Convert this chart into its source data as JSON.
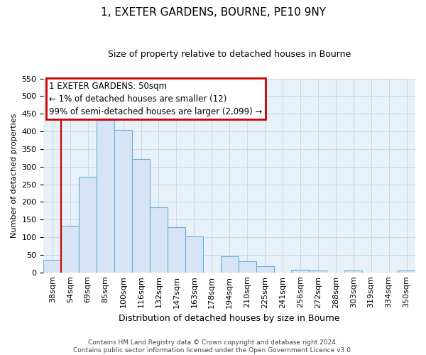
{
  "title": "1, EXETER GARDENS, BOURNE, PE10 9NY",
  "subtitle": "Size of property relative to detached houses in Bourne",
  "xlabel": "Distribution of detached houses by size in Bourne",
  "ylabel": "Number of detached properties",
  "categories": [
    "38sqm",
    "54sqm",
    "69sqm",
    "85sqm",
    "100sqm",
    "116sqm",
    "132sqm",
    "147sqm",
    "163sqm",
    "178sqm",
    "194sqm",
    "210sqm",
    "225sqm",
    "241sqm",
    "256sqm",
    "272sqm",
    "288sqm",
    "303sqm",
    "319sqm",
    "334sqm",
    "350sqm"
  ],
  "values": [
    35,
    133,
    272,
    432,
    405,
    322,
    184,
    128,
    103,
    0,
    46,
    31,
    18,
    0,
    8,
    5,
    0,
    6,
    0,
    0,
    5
  ],
  "bar_fill_color": "#d6e4f5",
  "bar_edge_color": "#6baed6",
  "marker_line_color": "#cc0000",
  "ylim": [
    0,
    550
  ],
  "yticks": [
    0,
    50,
    100,
    150,
    200,
    250,
    300,
    350,
    400,
    450,
    500,
    550
  ],
  "annotation_title": "1 EXETER GARDENS: 50sqm",
  "annotation_line1": "← 1% of detached houses are smaller (12)",
  "annotation_line2": "99% of semi-detached houses are larger (2,099) →",
  "footer_line1": "Contains HM Land Registry data © Crown copyright and database right 2024.",
  "footer_line2": "Contains public sector information licensed under the Open Government Licence v3.0.",
  "bg_color": "#ffffff",
  "grid_color": "#c8d8e8",
  "title_fontsize": 11,
  "subtitle_fontsize": 9,
  "xlabel_fontsize": 9,
  "ylabel_fontsize": 8,
  "tick_fontsize": 8,
  "annotation_fontsize": 8.5,
  "footer_fontsize": 6.5
}
